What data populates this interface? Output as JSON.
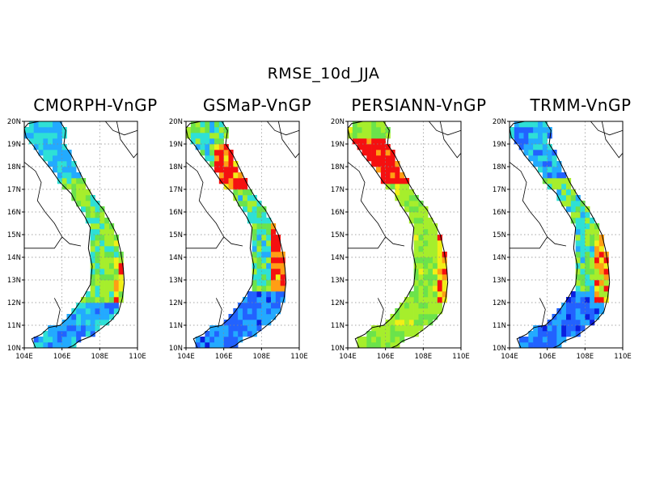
{
  "title": "RMSE_10d_JJA",
  "panels": [
    {
      "title": "CMORPH-VnGP",
      "scheme": "cmorph"
    },
    {
      "title": "GSMaP-VnGP",
      "scheme": "gsmap"
    },
    {
      "title": "PERSIANN-VnGP",
      "scheme": "persiann"
    },
    {
      "title": "TRMM-VnGP",
      "scheme": "trmm"
    }
  ],
  "map": {
    "lon_ticks": [
      "104E",
      "106E",
      "108E",
      "110E"
    ],
    "lat_ticks": [
      "10N",
      "11N",
      "12N",
      "13N",
      "14N",
      "15N",
      "16N",
      "17N",
      "18N",
      "19N",
      "20N"
    ],
    "lon_range": [
      104,
      110
    ],
    "lat_range": [
      10,
      20
    ],
    "gridlines": "dotted",
    "colors": [
      "#0a1fe0",
      "#2262ff",
      "#23aaff",
      "#2ee0d6",
      "#6be34b",
      "#a6ee2c",
      "#f1ef17",
      "#ff9e14",
      "#f51010"
    ]
  }
}
